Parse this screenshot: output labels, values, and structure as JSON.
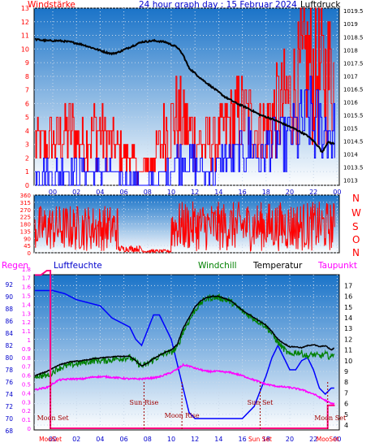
{
  "header": {
    "windstaerke": "Windstärke",
    "title": "24 hour graph day : 15 Februar 2024",
    "luftdruck": "Luftdruck"
  },
  "wind_dir_letters": [
    "N",
    "W",
    "S",
    "O",
    "N"
  ],
  "legend3": {
    "regen": "Regen",
    "luftfeuchte": "Luftfeuchte",
    "windchill": "Windchill",
    "temperatur": "Temperatur",
    "taupunkt": "Taupunkt"
  },
  "annotations": {
    "moon_set": "Moon Set",
    "sun_rise": "Sun Rise",
    "moon_rise": "Moon Rise",
    "sun_set": "Sun Set",
    "moon_set_2": "Moon Set",
    "axis_moon_set": "MooSet",
    "axis_sun_set": "Sun Set",
    "axis_moon_set_2": "MooSet"
  },
  "colors": {
    "wind_gust": "#ff0000",
    "wind_avg": "#0000ff",
    "pressure": "#000000",
    "direction": "#ff0000",
    "humidity": "#0000ff",
    "temperature": "#000000",
    "windchill": "#008000",
    "dewpoint": "#ff00ff",
    "rain": "#ff0080"
  },
  "chart_data": [
    {
      "type": "line",
      "title": "24 hour graph day : 15 Februar 2024",
      "ylabel_left": "Windstärke",
      "ylabel_right": "Luftdruck",
      "x_ticks": [
        "00",
        "02",
        "04",
        "06",
        "08",
        "10",
        "12",
        "14",
        "16",
        "18",
        "20",
        "22",
        "00"
      ],
      "yleft_ticks": [
        0,
        1,
        2,
        3,
        4,
        5,
        6,
        7,
        8,
        9,
        10,
        11,
        12,
        13
      ],
      "yleft_lim": [
        0,
        13
      ],
      "yright_ticks": [
        1013,
        1013.5,
        1014,
        1014.5,
        1015,
        1015.5,
        1016,
        1016.5,
        1017,
        1017.5,
        1018,
        1018.5,
        1019,
        1019.5
      ],
      "yright_lim": [
        1012.8,
        1019.6
      ],
      "grid": true,
      "series": [
        {
          "name": "Luftdruck",
          "axis": "right",
          "x": [
            -1.5,
            -0.5,
            0.5,
            1.5,
            2.5,
            3.5,
            4.5,
            5,
            5.5,
            6.5,
            7.5,
            8.5,
            9.5,
            10.5,
            11,
            11.5,
            12.5,
            13.5,
            14.5,
            15.5,
            16.5,
            17.5,
            18.5,
            19.5,
            20.5,
            21.5,
            22,
            22.5,
            22.7,
            23.2,
            23.8
          ],
          "y": [
            1018.4,
            1018.35,
            1018.35,
            1018.3,
            1018.2,
            1018.05,
            1017.9,
            1017.85,
            1017.9,
            1018.1,
            1018.3,
            1018.35,
            1018.3,
            1018.1,
            1017.8,
            1017.3,
            1016.9,
            1016.55,
            1016.2,
            1015.95,
            1015.75,
            1015.5,
            1015.35,
            1015.15,
            1014.95,
            1014.7,
            1014.5,
            1014.25,
            1014.05,
            1014.45,
            1014.4
          ]
        },
        {
          "name": "wind_gust",
          "axis": "left",
          "x": [
            -1.5,
            -0.5,
            0.5,
            1.5,
            2.5,
            3.5,
            4.5,
            5.5,
            6.5,
            7.5,
            8.5,
            9.5,
            10.5,
            11.5,
            12.5,
            13.5,
            14.5,
            15.5,
            16.5,
            17.5,
            18.5,
            19.5,
            20.5,
            21.5,
            22.5,
            23.5
          ],
          "y": [
            3,
            3,
            3.5,
            4,
            3,
            4,
            3.5,
            2.5,
            2,
            1,
            2,
            4,
            5,
            4,
            3,
            3,
            4,
            5,
            5,
            4,
            5,
            6,
            7,
            9,
            8,
            8
          ]
        },
        {
          "name": "wind_avg",
          "axis": "left",
          "x": [
            -1.5,
            -0.5,
            0.5,
            1.5,
            2.5,
            3.5,
            4.5,
            5.5,
            6.5,
            7.5,
            8.5,
            9.5,
            10.5,
            11.5,
            12.5,
            13.5,
            14.5,
            15.5,
            16.5,
            17.5,
            18.5,
            19.5,
            20.5,
            21.5,
            22.5,
            23.5
          ],
          "y": [
            1,
            1,
            1,
            1,
            1,
            1,
            1,
            0.5,
            0.3,
            0.2,
            0.3,
            1,
            2,
            2,
            1,
            1,
            2,
            2,
            3,
            2,
            3,
            3,
            4,
            5,
            4,
            4
          ]
        }
      ]
    },
    {
      "type": "line",
      "ylabel_right": "N W S O N",
      "x_ticks": [],
      "y_ticks": [
        0,
        45,
        90,
        135,
        180,
        225,
        270,
        315,
        360
      ],
      "ylim": [
        0,
        360
      ],
      "grid": true,
      "series": [
        {
          "name": "Windrichtung",
          "bands": [
            [
              -1.5,
              5.5,
              10,
              300
            ],
            [
              5.5,
              7.5,
              5,
              45
            ],
            [
              7.5,
              10,
              0,
              20
            ],
            [
              10,
              23.8,
              10,
              320
            ]
          ]
        }
      ]
    },
    {
      "type": "line",
      "ylabel_left1": "Regen",
      "ylabel_left2": "Luftfeuchte",
      "legend": [
        "Windchill",
        "Temperatur",
        "Taupunkt"
      ],
      "x_ticks": [
        "00",
        "02",
        "04",
        "06",
        "08",
        "10",
        "12",
        "14",
        "16",
        "18",
        "20",
        "22",
        "00"
      ],
      "yleft_regen_ticks": [
        0,
        0.1,
        0.2,
        0.3,
        0.4,
        0.5,
        0.6,
        0.7,
        0.8,
        0.9,
        1,
        1.1,
        1.2,
        1.3,
        1.4,
        1.5,
        1.6,
        1.7,
        1.8
      ],
      "yleft_regen_lim": [
        0,
        1.8
      ],
      "yleft_hum_ticks": [
        68,
        70,
        72,
        74,
        76,
        78,
        80,
        82,
        84,
        86,
        88,
        90,
        92
      ],
      "yleft_hum_lim": [
        68,
        93
      ],
      "yright_temp_ticks": [
        4,
        5,
        6,
        7,
        8,
        9,
        10,
        11,
        12,
        13,
        14,
        15,
        16,
        17
      ],
      "yright_temp_lim": [
        4,
        17
      ],
      "grid": true,
      "series": [
        {
          "name": "Luftfeuchte",
          "axis": "hum",
          "x": [
            -1.5,
            -1,
            0,
            1,
            2,
            3,
            4,
            5,
            6,
            6.5,
            7,
            7.5,
            8,
            8.5,
            9,
            9.5,
            10,
            10.5,
            11,
            11.5,
            12,
            13,
            14,
            15,
            16,
            17,
            18,
            18.5,
            19,
            19.5,
            20,
            20.5,
            21,
            21.5,
            22,
            22.5,
            23,
            23.5,
            23.8
          ],
          "y": [
            91,
            91,
            91,
            90.5,
            89.5,
            89,
            88.5,
            86.5,
            85.5,
            85,
            83,
            82,
            84.5,
            87,
            87,
            85,
            83,
            79,
            75,
            71,
            70,
            70,
            70,
            70,
            70,
            72,
            77,
            80,
            82,
            80,
            78,
            78,
            79.5,
            80,
            78,
            75,
            74,
            75,
            75
          ]
        },
        {
          "name": "Temperatur",
          "axis": "temp",
          "x": [
            -1.5,
            -0.5,
            0.5,
            1.5,
            2.5,
            3.5,
            4.5,
            5.5,
            6.5,
            7,
            7.5,
            8,
            8.5,
            9,
            9.5,
            10,
            10.5,
            11,
            11.5,
            12,
            12.5,
            13,
            13.5,
            14,
            15,
            16,
            17,
            18,
            18.5,
            19,
            19.5,
            20,
            20.5,
            21,
            21.5,
            22,
            22.5,
            23,
            23.5,
            23.8
          ],
          "y": [
            8.6,
            9,
            9.6,
            9.9,
            10,
            10.2,
            10.3,
            10.4,
            10.4,
            10,
            9.5,
            9.8,
            10.2,
            10.5,
            10.8,
            11,
            11.5,
            13,
            14,
            15,
            15.6,
            15.9,
            16,
            16,
            15.6,
            14.7,
            14,
            13.3,
            12.7,
            12,
            11.6,
            11.3,
            11.3,
            11.2,
            11.4,
            11.5,
            11.3,
            11.4,
            11,
            11.2
          ]
        },
        {
          "name": "Windchill",
          "axis": "temp",
          "x": [
            -1.5,
            -0.5,
            0.5,
            1.5,
            2.5,
            3.5,
            4.5,
            5.5,
            6.5,
            7,
            7.5,
            8,
            8.5,
            9,
            9.5,
            10,
            10.5,
            11,
            11.5,
            12,
            12.5,
            13,
            13.5,
            14,
            15,
            16,
            17,
            18,
            18.5,
            19,
            19.5,
            20,
            20.5,
            21,
            21.5,
            22,
            22.5,
            23,
            23.5,
            23.8
          ],
          "y": [
            8.6,
            8.6,
            9.3,
            9.6,
            9.8,
            10,
            10,
            10.2,
            10.3,
            9.9,
            9.5,
            9.7,
            10.1,
            10.4,
            10.7,
            10.8,
            11.2,
            12.7,
            13.7,
            14.7,
            15.4,
            15.8,
            15.9,
            15.9,
            15.5,
            14.6,
            13.9,
            13.2,
            12.5,
            11.7,
            11.1,
            10.5,
            10.8,
            10.7,
            10.4,
            10.6,
            10.4,
            10.6,
            10.3,
            10.9
          ]
        },
        {
          "name": "Taupunkt",
          "axis": "temp",
          "x": [
            -1.5,
            -0.5,
            0.5,
            1.5,
            2.5,
            3.5,
            4.5,
            5.5,
            6.5,
            7.5,
            8.5,
            9,
            9.5,
            10,
            10.5,
            11,
            11.5,
            12,
            13,
            14,
            15,
            16,
            17,
            18,
            19,
            20,
            21,
            22,
            22.5,
            23,
            23.5,
            23.8
          ],
          "y": [
            7.3,
            7.5,
            8.2,
            8.3,
            8.3,
            8.5,
            8.5,
            8.4,
            8.3,
            8.3,
            8.4,
            8.5,
            8.7,
            8.9,
            9.2,
            9.6,
            9.5,
            9.3,
            9,
            9,
            8.9,
            8.6,
            8.2,
            7.8,
            7.6,
            7.5,
            7.3,
            6.9,
            6.6,
            6.3,
            6,
            6
          ]
        },
        {
          "name": "Regen",
          "axis": "regen",
          "x": [
            -1.5,
            -1,
            -0.5,
            -0.2,
            -0.2,
            23.2,
            23.2,
            23.8
          ],
          "y": [
            1.73,
            1.73,
            1.78,
            1.78,
            0,
            0,
            0.26,
            0.26
          ]
        }
      ],
      "markers": [
        {
          "x": -0.2,
          "label": "Moon Set"
        },
        {
          "x": 7.7,
          "label": "Sun Rise"
        },
        {
          "x": 10.9,
          "label": "Moon Rise"
        },
        {
          "x": 17.5,
          "label": "Sun Set"
        },
        {
          "x": 23.2,
          "label": "Moon Set"
        }
      ]
    }
  ]
}
